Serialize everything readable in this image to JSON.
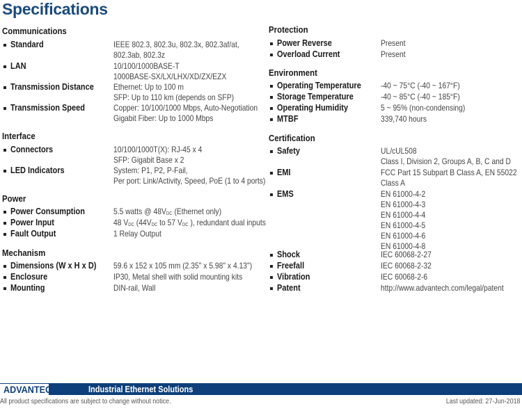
{
  "title": "Specifications",
  "left_sections": [
    {
      "heading": "Communications",
      "rows": [
        {
          "label": "Standard",
          "lines": [
            [
              "IEEE 802.3, 802.3u, 802.3x, 802.3af/at,"
            ],
            [
              "802.3ab, 802.3z"
            ]
          ]
        },
        {
          "label": "LAN",
          "lines": [
            [
              "10/100/1000BASE-T"
            ],
            [
              "1000BASE-SX/LX/LHX/XD/ZX/EZX"
            ]
          ]
        },
        {
          "label": "Transmission Distance",
          "lines": [
            [
              "Ethernet: Up to 100 m"
            ],
            [
              "SFP: Up to 110 km (depends on SFP)"
            ]
          ]
        },
        {
          "label": "Transmission Speed",
          "lines": [
            [
              "Copper: 10/100/1000 Mbps, Auto-Negotiation"
            ],
            [
              "Gigabit Fiber: Up to 1000 Mbps"
            ]
          ]
        }
      ]
    },
    {
      "heading": "Interface",
      "rows": [
        {
          "label": "Connectors",
          "lines": [
            [
              "10/100/1000T(X): RJ-45 x 4"
            ],
            [
              "SFP: Gigabit Base x 2"
            ]
          ]
        },
        {
          "label": "LED Indicators",
          "lines": [
            [
              "System: P1, P2, P-Fail,"
            ],
            [
              "Per port: Link/Activity, Speed, PoE (1 to 4 ports)"
            ]
          ]
        }
      ]
    },
    {
      "heading": "Power",
      "rows": [
        {
          "label": "Power Consumption",
          "lines": [
            [
              "5.5 watts @ 48V",
              {
                "sub": "DC"
              },
              "  (Ethernet only)"
            ]
          ]
        },
        {
          "label": "Power Input",
          "lines": [
            [
              "48 V",
              {
                "sub": "DC"
              },
              " (44V",
              {
                "sub": "DC"
              },
              " to 57 V",
              {
                "sub": "DC"
              },
              " ), redundant dual inputs"
            ]
          ]
        },
        {
          "label": "Fault Output",
          "lines": [
            [
              "1 Relay Output"
            ]
          ]
        }
      ]
    },
    {
      "heading": "Mechanism",
      "rows": [
        {
          "label": "Dimensions (W x H x D)",
          "lines": [
            [
              "59.6 x 152 x 105 mm (2.35\" x 5.98\" x 4.13\")"
            ]
          ]
        },
        {
          "label": "Enclosure",
          "lines": [
            [
              "IP30, Metal shell with solid mounting kits"
            ]
          ]
        },
        {
          "label": "Mounting",
          "lines": [
            [
              "DIN-rail, Wall"
            ]
          ]
        }
      ]
    }
  ],
  "right_sections": [
    {
      "heading": "Protection",
      "rows": [
        {
          "label": "Power Reverse",
          "lines": [
            [
              "Present"
            ]
          ]
        },
        {
          "label": "Overload Current",
          "lines": [
            [
              "Present"
            ]
          ]
        }
      ]
    },
    {
      "heading": "Environment",
      "rows": [
        {
          "label": "Operating Temperature",
          "lines": [
            [
              "-40 ~ 75°C  (-40 ~ 167°F)"
            ]
          ]
        },
        {
          "label": "Storage Temperature",
          "lines": [
            [
              "-40 ~ 85°C  (-40 ~ 185°F)"
            ]
          ]
        },
        {
          "label": "Operating Humidity",
          "lines": [
            [
              "5 ~ 95% (non-condensing)"
            ]
          ]
        },
        {
          "label": "MTBF",
          "lines": [
            [
              "339,740 hours"
            ]
          ]
        }
      ]
    },
    {
      "heading": "Certification",
      "rows": [
        {
          "label": "Safety",
          "lines": [
            [
              "UL/cUL508"
            ],
            [
              "Class I, Division 2, Groups A, B, C and D"
            ]
          ]
        },
        {
          "label": "EMI",
          "lines": [
            [
              "FCC Part 15 Subpart B Class A,  EN 55022"
            ],
            [
              "Class A"
            ]
          ]
        },
        {
          "label": "EMS",
          "lines": [
            [
              "EN 61000-4-2"
            ],
            [
              "EN 61000-4-3"
            ],
            [
              "EN 61000-4-4"
            ],
            [
              "EN 61000-4-5"
            ],
            [
              "EN 61000-4-6"
            ],
            [
              "EN 61000-4-8"
            ]
          ]
        },
        {
          "label": "Shock",
          "lines": [
            [
              "IEC 60068-2-27"
            ]
          ]
        },
        {
          "label": "Freefall",
          "lines": [
            [
              "IEC 60068-2-32"
            ]
          ]
        },
        {
          "label": "Vibration",
          "lines": [
            [
              "IEC 60068-2-6"
            ]
          ]
        },
        {
          "label": "Patent",
          "lines": [
            [
              "http://www.advantech.com/legal/patent"
            ]
          ]
        }
      ]
    }
  ],
  "footer": {
    "logo": "ADVANTECH",
    "bar_text": "Industrial Ethernet Solutions",
    "disclaimer": "All product specifications are subject to change without notice.",
    "updated": "Last updated: 27-Jun-2018"
  }
}
